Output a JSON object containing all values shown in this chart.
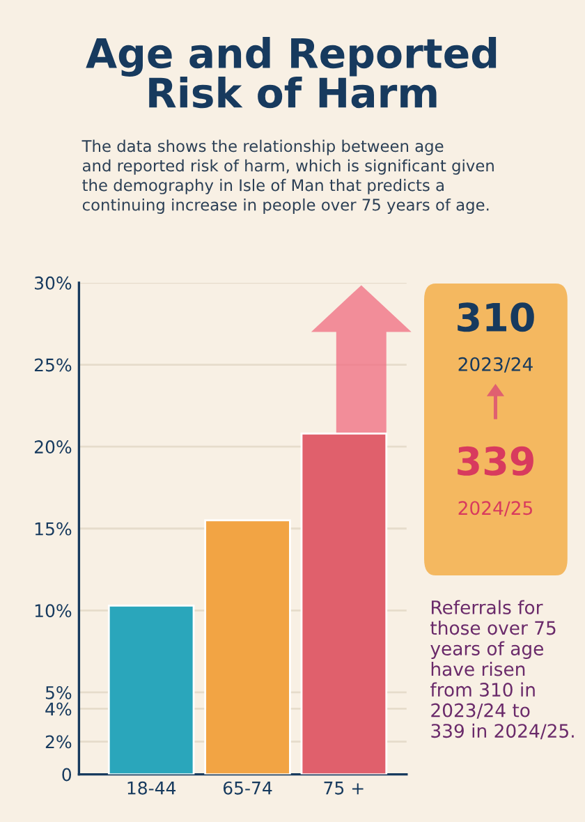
{
  "chart_data": {
    "type": "bar",
    "title": "Age and Reported\nRisk of Harm",
    "subtitle": "The data shows the relationship between age\nand reported risk of harm, which is significant given\nthe demography in Isle of Man that predicts a\ncontinuing increase in people over 75 years of age.",
    "categories": [
      "18-44",
      "65-74",
      "75 +"
    ],
    "values": [
      10.3,
      15.5,
      20.8
    ],
    "colors": [
      "#2aa6bb",
      "#f2a444",
      "#e0606c"
    ],
    "ylim": [
      0,
      30
    ],
    "yticks": [
      0,
      {
        "value": 2,
        "label": "2%"
      },
      {
        "value": 4,
        "label": "4%"
      },
      {
        "value": 5,
        "label": "5%"
      },
      {
        "value": 10,
        "label": "10%"
      },
      {
        "value": 15,
        "label": "15%"
      },
      {
        "value": 20,
        "label": "20%"
      },
      {
        "value": 25,
        "label": "25%"
      },
      {
        "value": 30,
        "label": "30%"
      }
    ],
    "grid": "y",
    "annotations": [
      "310",
      "2023/24",
      "339",
      "2024/25",
      "Referrals for\nthose over 75\nyears of age\nhave risen\nfrom 310 in\n2023/24 to\n339 in 2024/25."
    ]
  }
}
